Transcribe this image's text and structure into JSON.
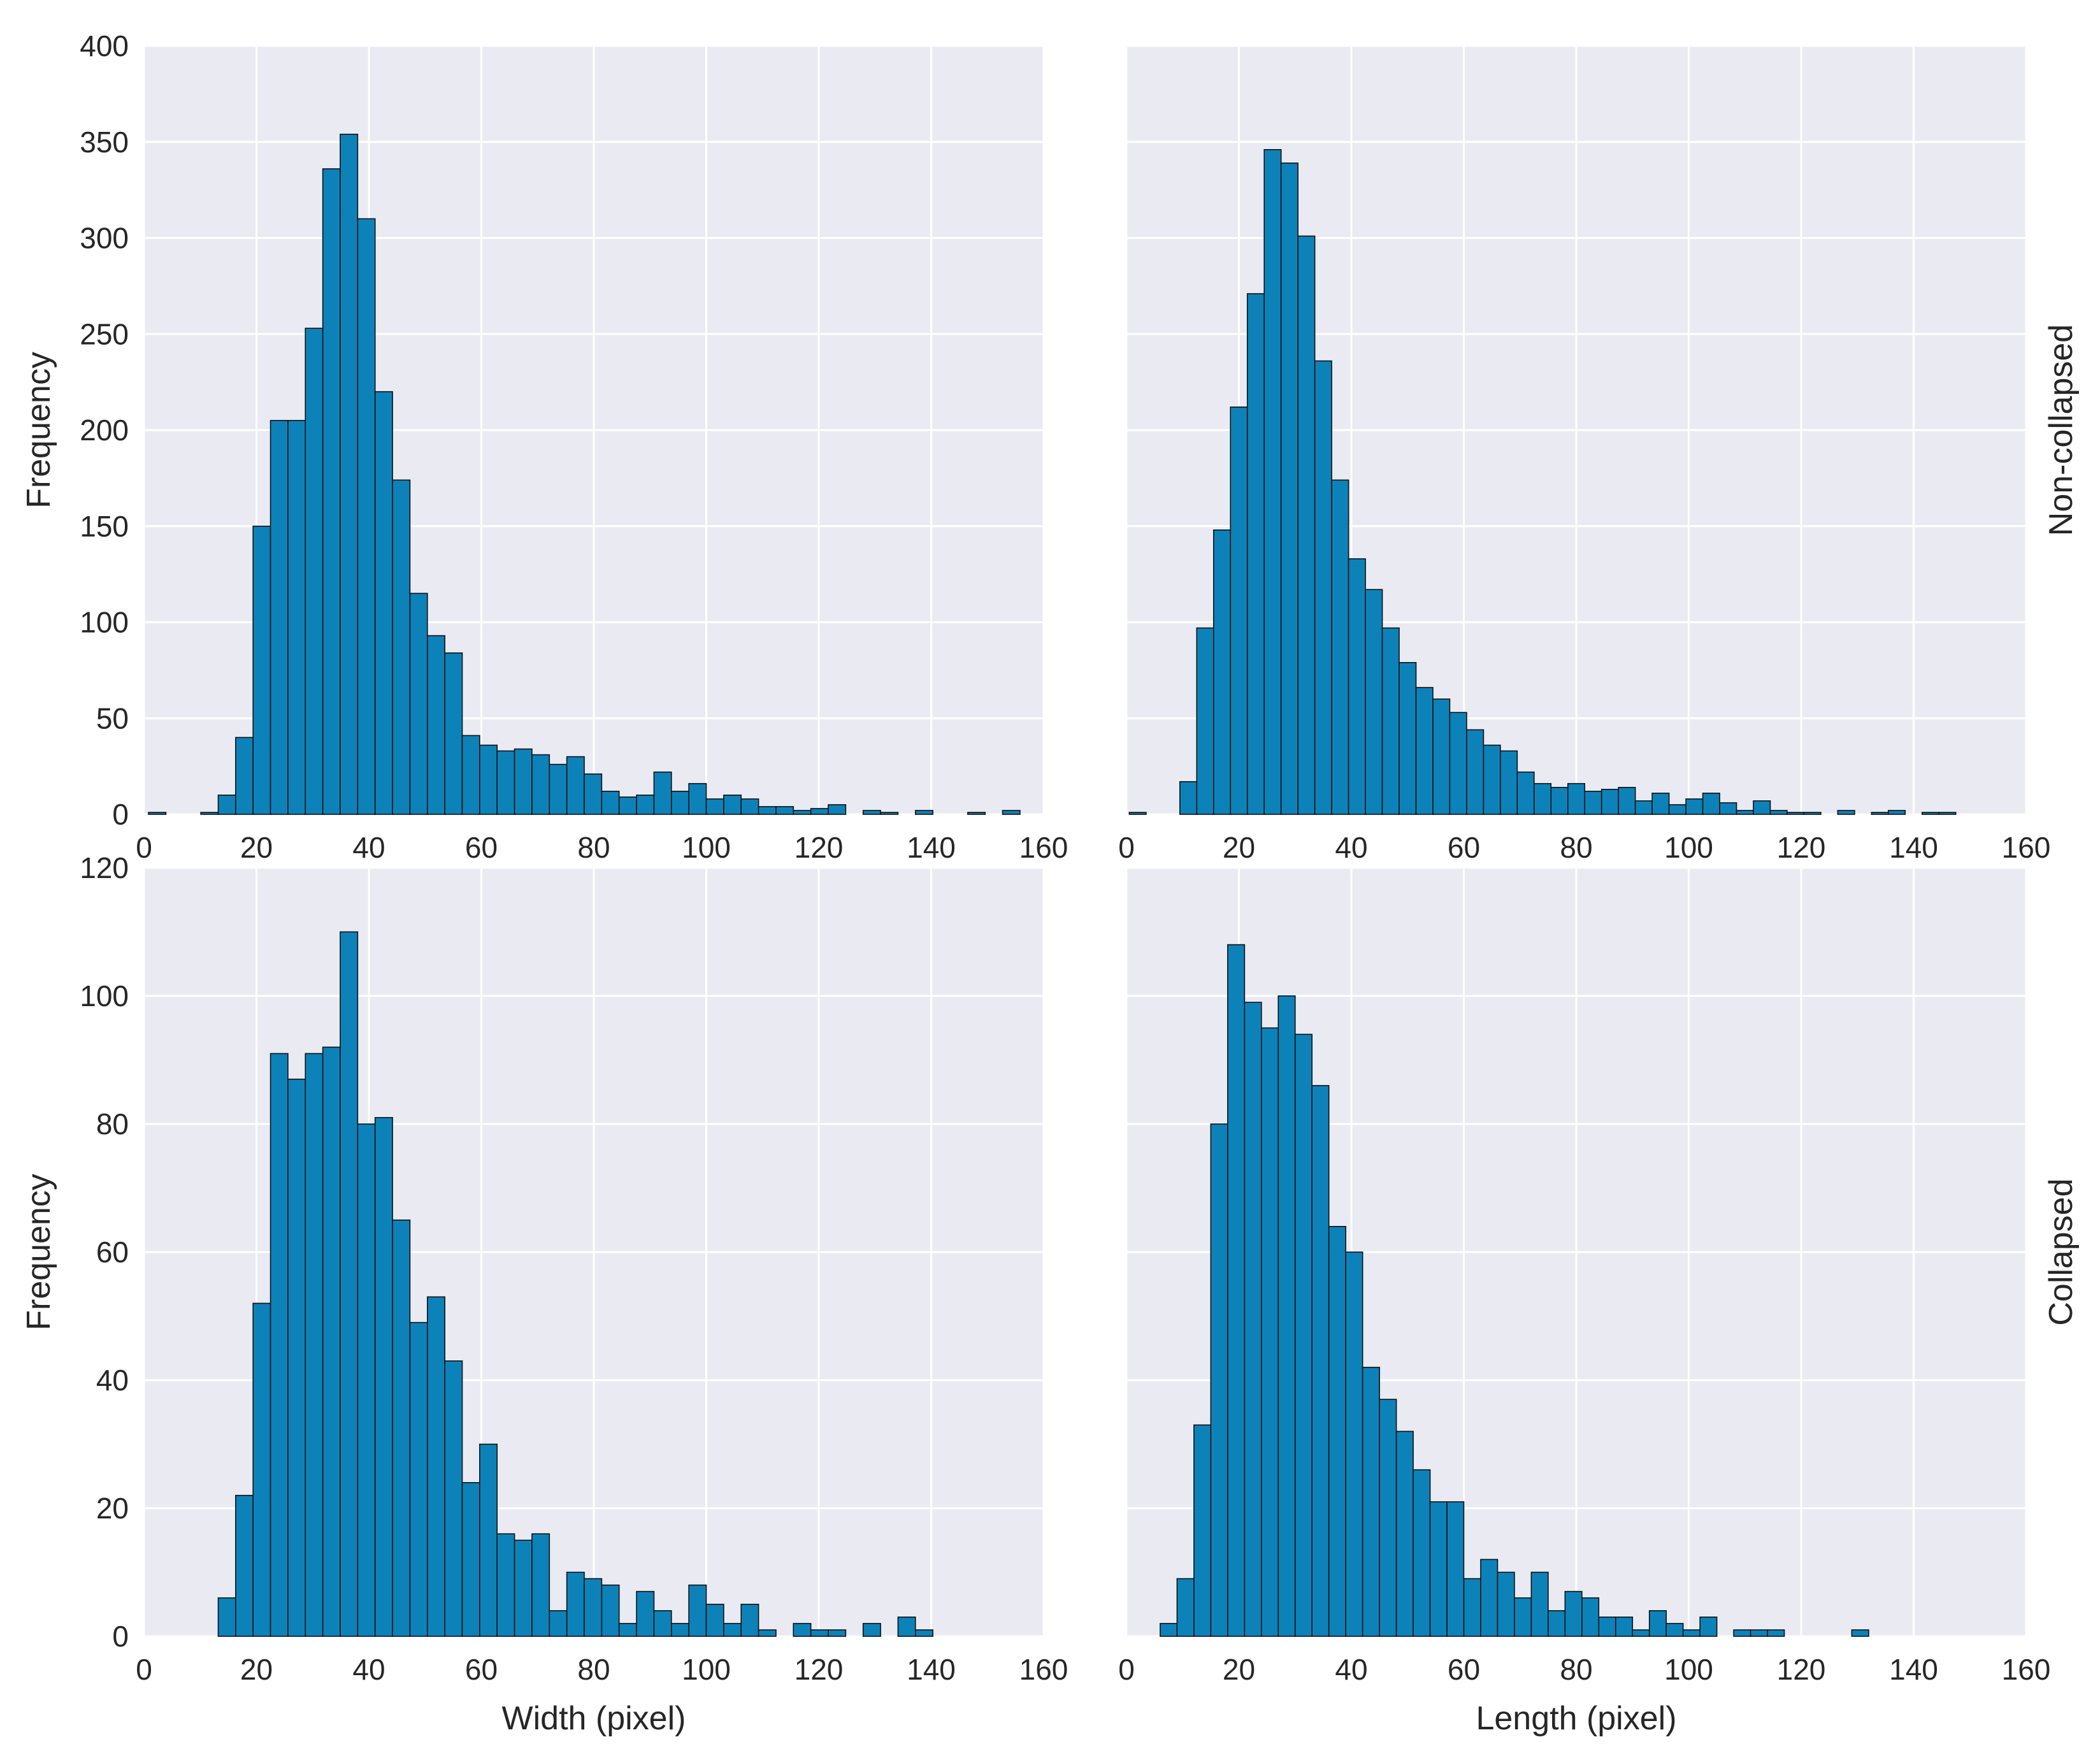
{
  "chart_data": [
    {
      "type": "bar",
      "row_label": "Non-collapsed",
      "xlabel": "",
      "ylabel": "Frequency",
      "xlim": [
        0,
        160
      ],
      "ylim": [
        0,
        400
      ],
      "xticks": [
        "0",
        "20",
        "40",
        "60",
        "80",
        "100",
        "120",
        "140",
        "160"
      ],
      "yticks": [
        "0",
        "50",
        "100",
        "150",
        "200",
        "250",
        "300",
        "350",
        "400"
      ],
      "bin_width": 3.1,
      "bin_start": 0.8,
      "values": [
        1,
        0,
        0,
        1,
        10,
        40,
        150,
        205,
        205,
        253,
        336,
        354,
        310,
        220,
        174,
        115,
        93,
        84,
        41,
        36,
        33,
        34,
        31,
        26,
        30,
        21,
        12,
        9,
        10,
        22,
        12,
        16,
        8,
        10,
        8,
        4,
        4,
        2,
        3,
        5,
        0,
        2,
        1,
        0,
        2,
        0,
        0,
        1,
        0,
        2
      ],
      "grid": true
    },
    {
      "type": "bar",
      "row_label": "Non-collapsed",
      "xlabel": "",
      "ylabel": "",
      "xlim": [
        0,
        160
      ],
      "ylim": [
        0,
        400
      ],
      "xticks": [
        "0",
        "20",
        "40",
        "60",
        "80",
        "100",
        "120",
        "140",
        "160"
      ],
      "yticks": [],
      "bin_width": 3.0,
      "bin_start": 0.5,
      "values": [
        1,
        0,
        0,
        17,
        97,
        148,
        212,
        271,
        346,
        339,
        301,
        236,
        174,
        133,
        117,
        97,
        79,
        66,
        60,
        53,
        44,
        36,
        33,
        22,
        16,
        14,
        16,
        12,
        13,
        14,
        7,
        11,
        5,
        8,
        11,
        6,
        2,
        7,
        2,
        1,
        1,
        0,
        2,
        0,
        1,
        2,
        0,
        1,
        1
      ],
      "grid": true
    },
    {
      "type": "bar",
      "row_label": "Collapsed",
      "xlabel": "Width (pixel)",
      "ylabel": "Frequency",
      "xlim": [
        0,
        160
      ],
      "ylim": [
        0,
        120
      ],
      "xticks": [
        "0",
        "20",
        "40",
        "60",
        "80",
        "100",
        "120",
        "140",
        "160"
      ],
      "yticks": [
        "0",
        "20",
        "40",
        "60",
        "80",
        "100",
        "120"
      ],
      "bin_width": 3.1,
      "bin_start": 0.8,
      "values": [
        0,
        0,
        0,
        0,
        6,
        22,
        52,
        91,
        87,
        91,
        92,
        110,
        80,
        81,
        65,
        49,
        53,
        43,
        24,
        30,
        16,
        15,
        16,
        4,
        10,
        9,
        8,
        2,
        7,
        4,
        2,
        8,
        5,
        2,
        5,
        1,
        0,
        2,
        1,
        1,
        0,
        2,
        0,
        3,
        1
      ],
      "grid": true
    },
    {
      "type": "bar",
      "row_label": "Collapsed",
      "xlabel": "Length (pixel)",
      "ylabel": "",
      "xlim": [
        0,
        160
      ],
      "ylim": [
        0,
        120
      ],
      "xticks": [
        "0",
        "20",
        "40",
        "60",
        "80",
        "100",
        "120",
        "140",
        "160"
      ],
      "yticks": [],
      "bin_width": 3.0,
      "bin_start": 6.0,
      "values": [
        2,
        9,
        33,
        80,
        108,
        99,
        95,
        100,
        94,
        86,
        64,
        60,
        42,
        37,
        32,
        26,
        21,
        21,
        9,
        12,
        10,
        6,
        10,
        4,
        7,
        6,
        3,
        3,
        1,
        4,
        2,
        1,
        3,
        0,
        1,
        1,
        1,
        0,
        0,
        0,
        0,
        1
      ],
      "grid": true
    }
  ],
  "colors": {
    "bar": "#0d82b9",
    "edge": "#111111",
    "axes_bg": "#eaeaf2",
    "grid": "#ffffff"
  }
}
